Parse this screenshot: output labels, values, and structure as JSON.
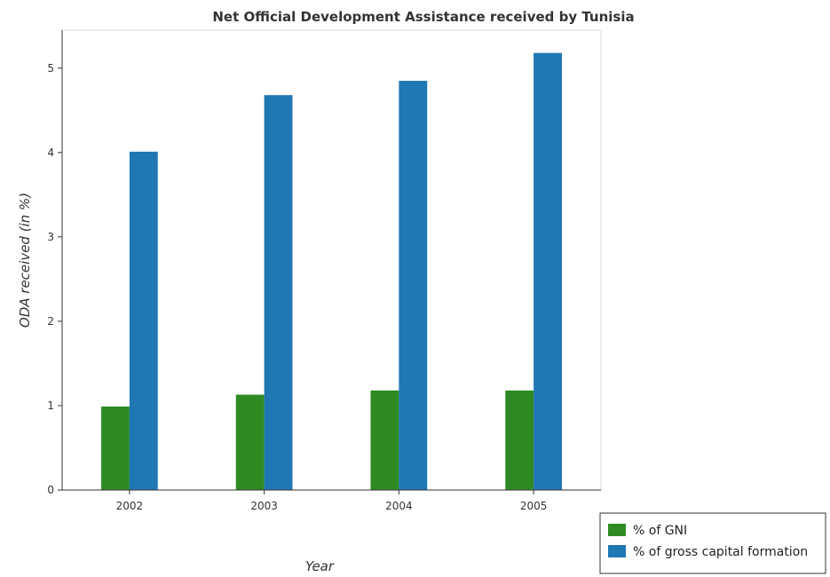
{
  "chart_data": {
    "type": "bar",
    "title": "Net Official Development Assistance received by Tunisia",
    "xlabel": "Year",
    "ylabel": "ODA received (in %)",
    "categories": [
      "2002",
      "2003",
      "2004",
      "2005"
    ],
    "ylim": [
      0,
      5.45
    ],
    "yticks": [
      "0",
      "1",
      "2",
      "3",
      "4",
      "5"
    ],
    "series": [
      {
        "name": "% of GNI",
        "color": "#2e8b24",
        "values": [
          0.99,
          1.13,
          1.18,
          1.18
        ]
      },
      {
        "name": "% of gross capital formation",
        "color": "#1f77b4",
        "values": [
          4.01,
          4.68,
          4.85,
          5.18
        ]
      }
    ],
    "legend_position": "bottom-right",
    "grid": false
  }
}
